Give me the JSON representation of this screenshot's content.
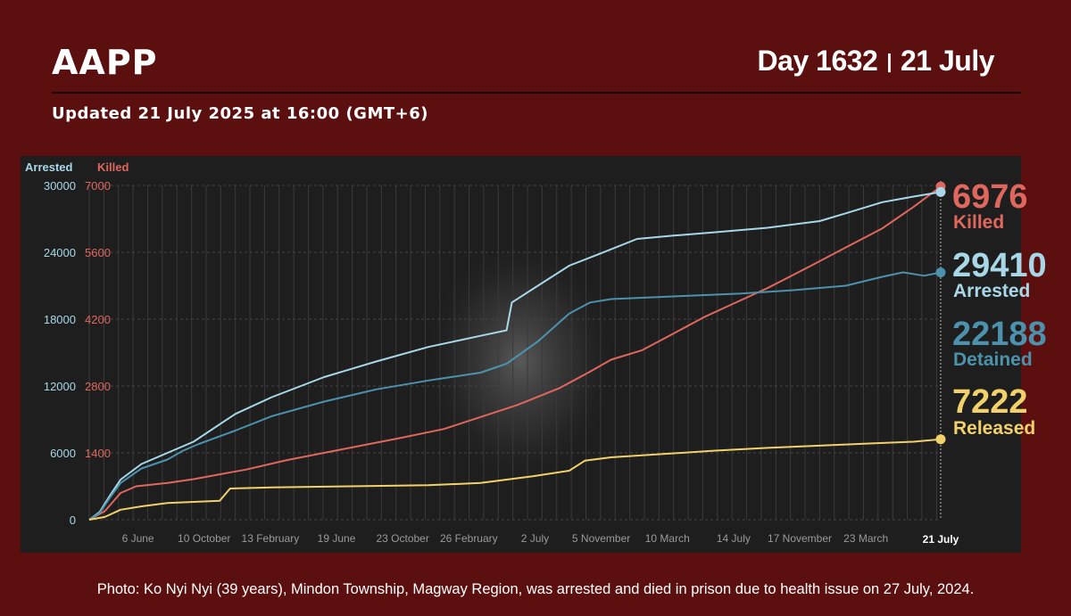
{
  "header": {
    "brand": "AAPP",
    "day_label": "Day 1632",
    "separator": "|",
    "date_label": "21 July",
    "updated": "Updated 21 July 2025 at 16:00 (GMT+6)"
  },
  "caption": "Photo: Ko Nyi Nyi (39 years), Mindon Township, Magway Region, was arrested and died in prison due to health issue on 27 July, 2024.",
  "colors": {
    "background": "#5b0f0f",
    "panel": "#1e1e1e",
    "killed": "#e0675e",
    "arrested": "#a8d8e8",
    "detained": "#4d92ad",
    "released": "#f2d16b"
  },
  "chart_data": {
    "type": "line",
    "axis_titles": {
      "left": "Arrested",
      "right": "Killed"
    },
    "left_axis": {
      "ticks": [
        "0",
        "6000",
        "12000",
        "18000",
        "24000",
        "30000"
      ],
      "ylim": [
        0,
        30000
      ]
    },
    "right_axis": {
      "ticks": [
        "1400",
        "2800",
        "4200",
        "5600",
        "7000"
      ],
      "ylim": [
        0,
        7000
      ]
    },
    "x_ticks": [
      "6 June",
      "10 October",
      "13 February",
      "19 June",
      "23 October",
      "26 February",
      "2 July",
      "5 November",
      "10 March",
      "14 July",
      "17 November",
      "23 March"
    ],
    "x_end_label": "21 July",
    "xlim_days": [
      0,
      1632
    ],
    "grid": true,
    "series": [
      {
        "name": "Killed",
        "value_label": "6976",
        "axis": "right",
        "color_key": "killed",
        "points": [
          [
            0,
            0
          ],
          [
            30,
            180
          ],
          [
            60,
            560
          ],
          [
            90,
            700
          ],
          [
            150,
            770
          ],
          [
            200,
            850
          ],
          [
            250,
            950
          ],
          [
            300,
            1050
          ],
          [
            380,
            1250
          ],
          [
            450,
            1400
          ],
          [
            520,
            1550
          ],
          [
            600,
            1720
          ],
          [
            680,
            1900
          ],
          [
            750,
            2150
          ],
          [
            820,
            2400
          ],
          [
            900,
            2750
          ],
          [
            960,
            3100
          ],
          [
            1000,
            3350
          ],
          [
            1060,
            3550
          ],
          [
            1120,
            3900
          ],
          [
            1180,
            4250
          ],
          [
            1230,
            4500
          ],
          [
            1300,
            4850
          ],
          [
            1380,
            5300
          ],
          [
            1450,
            5700
          ],
          [
            1520,
            6100
          ],
          [
            1580,
            6550
          ],
          [
            1632,
            6976
          ]
        ]
      },
      {
        "name": "Arrested",
        "value_label": "29410",
        "axis": "left",
        "color_key": "arrested",
        "points": [
          [
            0,
            0
          ],
          [
            20,
            700
          ],
          [
            40,
            2200
          ],
          [
            60,
            3600
          ],
          [
            100,
            5000
          ],
          [
            150,
            6000
          ],
          [
            200,
            7000
          ],
          [
            280,
            9500
          ],
          [
            350,
            11000
          ],
          [
            450,
            12800
          ],
          [
            550,
            14200
          ],
          [
            650,
            15500
          ],
          [
            750,
            16500
          ],
          [
            800,
            17000
          ],
          [
            810,
            19500
          ],
          [
            860,
            21000
          ],
          [
            920,
            22800
          ],
          [
            980,
            23900
          ],
          [
            1050,
            25200
          ],
          [
            1120,
            25500
          ],
          [
            1200,
            25800
          ],
          [
            1300,
            26200
          ],
          [
            1400,
            26800
          ],
          [
            1450,
            27500
          ],
          [
            1520,
            28500
          ],
          [
            1580,
            29000
          ],
          [
            1632,
            29410
          ]
        ]
      },
      {
        "name": "Detained",
        "value_label": "22188",
        "axis": "left",
        "color_key": "detained",
        "points": [
          [
            0,
            0
          ],
          [
            20,
            600
          ],
          [
            40,
            2000
          ],
          [
            60,
            3300
          ],
          [
            100,
            4600
          ],
          [
            150,
            5400
          ],
          [
            180,
            6200
          ],
          [
            210,
            6800
          ],
          [
            280,
            8000
          ],
          [
            350,
            9300
          ],
          [
            450,
            10600
          ],
          [
            550,
            11700
          ],
          [
            650,
            12500
          ],
          [
            750,
            13200
          ],
          [
            800,
            14000
          ],
          [
            860,
            16000
          ],
          [
            920,
            18500
          ],
          [
            960,
            19500
          ],
          [
            1000,
            19800
          ],
          [
            1050,
            19900
          ],
          [
            1150,
            20100
          ],
          [
            1250,
            20300
          ],
          [
            1350,
            20600
          ],
          [
            1450,
            21000
          ],
          [
            1520,
            21800
          ],
          [
            1560,
            22200
          ],
          [
            1600,
            21900
          ],
          [
            1632,
            22188
          ]
        ]
      },
      {
        "name": "Released",
        "value_label": "7222",
        "axis": "left",
        "color_key": "released",
        "points": [
          [
            0,
            0
          ],
          [
            30,
            250
          ],
          [
            60,
            900
          ],
          [
            100,
            1200
          ],
          [
            150,
            1500
          ],
          [
            250,
            1700
          ],
          [
            270,
            2800
          ],
          [
            350,
            2900
          ],
          [
            500,
            3000
          ],
          [
            650,
            3100
          ],
          [
            750,
            3300
          ],
          [
            850,
            3900
          ],
          [
            920,
            4400
          ],
          [
            950,
            5300
          ],
          [
            1000,
            5600
          ],
          [
            1100,
            5900
          ],
          [
            1200,
            6200
          ],
          [
            1300,
            6450
          ],
          [
            1400,
            6650
          ],
          [
            1500,
            6850
          ],
          [
            1580,
            7000
          ],
          [
            1632,
            7222
          ]
        ]
      }
    ]
  }
}
